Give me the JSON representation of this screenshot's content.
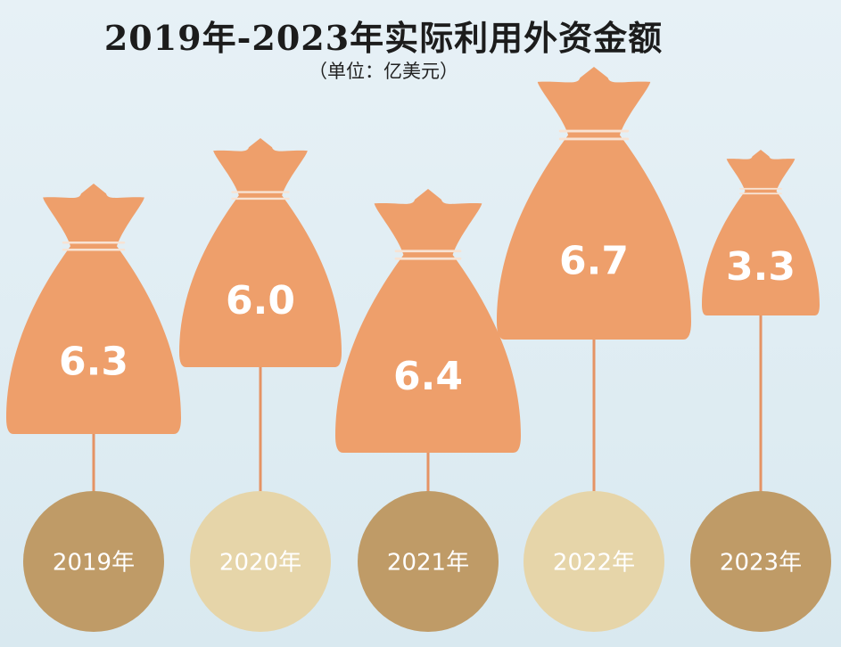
{
  "header": {
    "title": "2019年-2023年实际利用外资金额",
    "subtitle": "（单位：亿美元）"
  },
  "colors": {
    "bag": "#ee9f6b",
    "bag_string": "#f8e3d3",
    "stick": "#e59364",
    "circle_dark": "#bf9b67",
    "circle_light": "#e6d5a9",
    "value_text": "#ffffff",
    "year_text": "#ffffff"
  },
  "chart_data": {
    "type": "bar",
    "categories": [
      "2019年",
      "2020年",
      "2021年",
      "2022年",
      "2023年"
    ],
    "values": [
      6.3,
      6.0,
      6.4,
      6.7,
      3.3
    ],
    "value_labels": [
      "6.3",
      "6.0",
      "6.4",
      "6.7",
      "3.3"
    ],
    "title": "2019年-2023年实际利用外资金额",
    "unit": "亿美元"
  }
}
